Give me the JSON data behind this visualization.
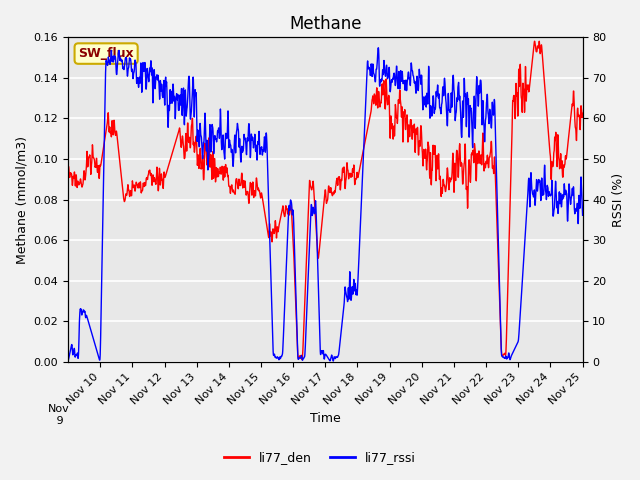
{
  "title": "Methane",
  "xlabel": "Time",
  "ylabel_left": "Methane (mmol/m3)",
  "ylabel_right": "RSSI (%)",
  "ylim_left": [
    0.0,
    0.16
  ],
  "ylim_right": [
    0,
    80
  ],
  "yticks_left": [
    0.0,
    0.02,
    0.04,
    0.06,
    0.08,
    0.1,
    0.12,
    0.14,
    0.16
  ],
  "yticks_right": [
    0,
    10,
    20,
    30,
    40,
    50,
    60,
    70,
    80
  ],
  "xtick_labels": [
    "Nov 10",
    "Nov 11",
    "Nov 12",
    "Nov 13",
    "Nov 14",
    "Nov 15",
    "Nov 16",
    "Nov 17",
    "Nov 18",
    "Nov 19",
    "Nov 20",
    "Nov 21",
    "Nov 22",
    "Nov 23",
    "Nov 24",
    "Nov 25"
  ],
  "legend_labels": [
    "li77_den",
    "li77_rssi"
  ],
  "line_colors": [
    "red",
    "blue"
  ],
  "annotation_text": "SW_flux",
  "annotation_bg": "#FFFFCC",
  "annotation_border": "#CCAA00",
  "plot_bg": "#E8E8E8",
  "fig_bg": "#F2F2F2",
  "grid_color": "white",
  "title_fontsize": 12,
  "axis_fontsize": 9,
  "tick_fontsize": 8,
  "line_width": 1.0
}
